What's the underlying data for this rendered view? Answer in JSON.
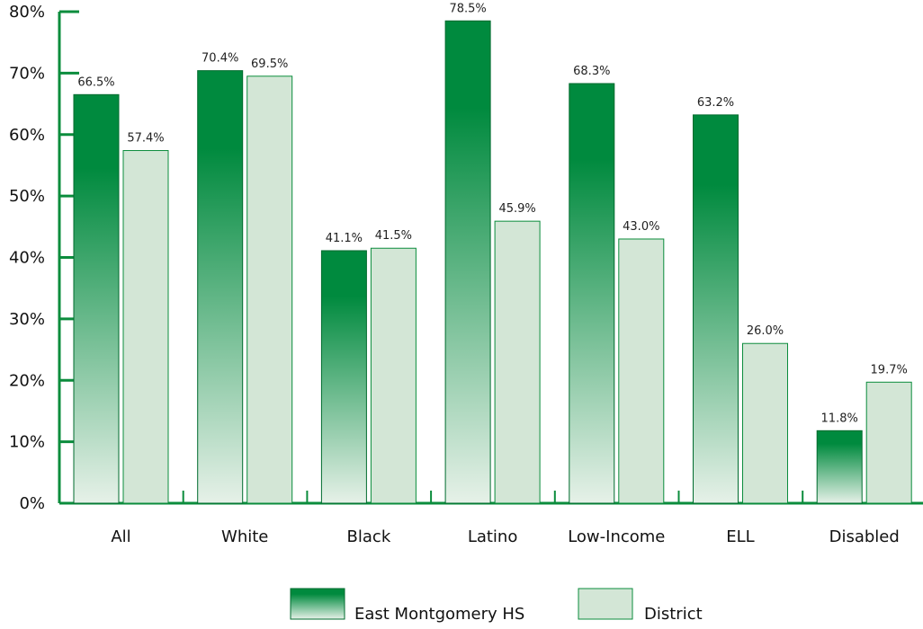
{
  "chart_data": {
    "type": "bar",
    "categories": [
      "All",
      "White",
      "Black",
      "Latino",
      "Low-Income",
      "ELL",
      "Disabled"
    ],
    "series": [
      {
        "name": "East Montgomery HS",
        "values": [
          66.5,
          70.4,
          41.1,
          78.5,
          68.3,
          63.2,
          11.8
        ]
      },
      {
        "name": "District",
        "values": [
          57.4,
          69.5,
          41.5,
          45.9,
          43.0,
          26.0,
          19.7
        ]
      }
    ],
    "data_labels": [
      [
        "66.5%",
        "70.4%",
        "41.1%",
        "78.5%",
        "68.3%",
        "63.2%",
        "11.8%"
      ],
      [
        "57.4%",
        "69.5%",
        "41.5%",
        "45.9%",
        "43.0%",
        "26.0%",
        "19.7%"
      ]
    ],
    "y_ticks": [
      "0%",
      "10%",
      "20%",
      "30%",
      "40%",
      "50%",
      "60%",
      "70%",
      "80%"
    ],
    "ylim": [
      0,
      80
    ],
    "grid": false,
    "legend_position": "bottom",
    "title": "",
    "xlabel": "",
    "ylabel": "",
    "colors": {
      "series1_top": "#008a3e",
      "series1_bottom": "#e6f1e8",
      "series1_stroke": "#006b2e",
      "series2_fill": "#d3e6d6",
      "series2_stroke": "#0b8c3c",
      "axis": "#0b8c3c"
    }
  }
}
